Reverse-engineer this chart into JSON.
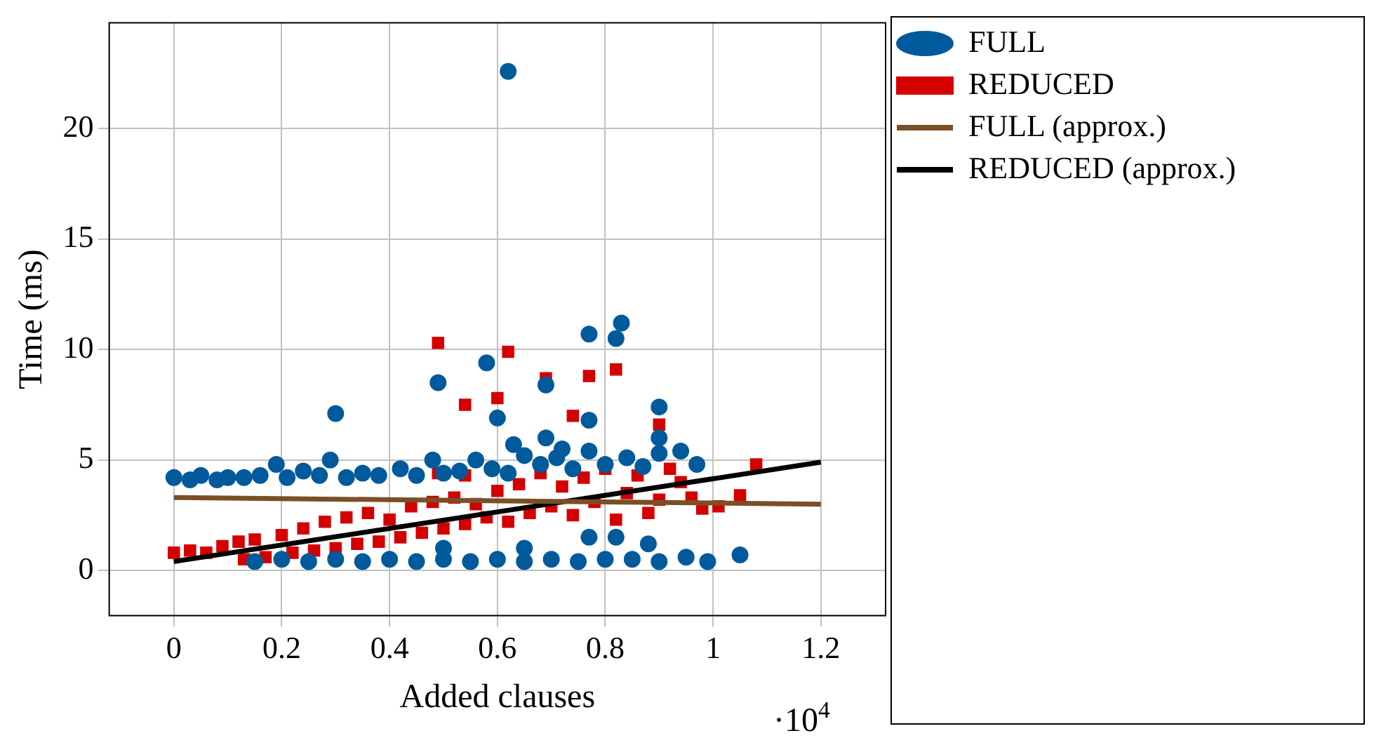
{
  "chart_data": {
    "type": "scatter",
    "xlabel": "Added clauses",
    "ylabel": "Time (ms)",
    "annotations": [
      "·10$^{4}$"
    ],
    "xlim": [
      -0.12,
      1.32
    ],
    "ylim": [
      -2.05,
      24.8
    ],
    "xticks": [
      0,
      0.2,
      0.4,
      0.6,
      0.8,
      1,
      1.2
    ],
    "yticks": [
      0,
      5,
      10,
      15,
      20
    ],
    "grid": true,
    "legend": "top right",
    "series": [
      {
        "name": "FULL",
        "type": "scatter",
        "marker": "circle",
        "color": "#005a9c",
        "x": [
          0,
          0.03,
          0.05,
          0.08,
          0.1,
          0.13,
          0.16,
          0.19,
          0.21,
          0.24,
          0.27,
          0.29,
          0.32,
          0.35,
          0.38,
          0.42,
          0.45,
          0.48,
          0.5,
          0.53,
          0.56,
          0.59,
          0.62,
          0.65,
          0.68,
          0.71,
          0.74,
          0.77,
          0.8,
          0.84,
          0.87,
          0.9,
          0.94,
          0.97,
          0.15,
          0.2,
          0.25,
          0.3,
          0.35,
          0.4,
          0.45,
          0.5,
          0.55,
          0.6,
          0.65,
          0.7,
          0.75,
          0.8,
          0.85,
          0.9,
          0.95,
          0.99,
          1.05,
          0.88,
          0.77,
          0.82,
          0.65,
          0.5,
          0.62,
          0.3,
          0.49,
          0.58,
          0.6,
          0.77,
          0.83,
          0.82,
          0.77,
          0.69,
          0.9,
          0.63,
          0.69,
          0.72,
          0.9
        ],
        "values": [
          4.2,
          4.1,
          4.3,
          4.1,
          4.2,
          4.2,
          4.3,
          4.8,
          4.2,
          4.5,
          4.3,
          5.0,
          4.2,
          4.4,
          4.3,
          4.6,
          4.3,
          5.0,
          4.4,
          4.5,
          5.0,
          4.6,
          4.4,
          5.2,
          4.8,
          5.1,
          4.6,
          5.4,
          4.8,
          5.1,
          4.7,
          5.3,
          5.4,
          4.8,
          0.4,
          0.5,
          0.4,
          0.5,
          0.4,
          0.5,
          0.4,
          0.5,
          0.4,
          0.5,
          0.4,
          0.5,
          0.4,
          0.5,
          0.5,
          0.4,
          0.6,
          0.4,
          0.7,
          1.2,
          1.5,
          1.5,
          1.0,
          1.0,
          22.6,
          7.1,
          8.5,
          9.4,
          6.9,
          10.7,
          11.2,
          10.5,
          6.8,
          8.4,
          7.4,
          5.7,
          6.0,
          5.5,
          6.0
        ]
      },
      {
        "name": "REDUCED",
        "type": "scatter",
        "marker": "square",
        "color": "#d40000",
        "x": [
          0,
          0.03,
          0.06,
          0.09,
          0.12,
          0.13,
          0.15,
          0.17,
          0.2,
          0.22,
          0.24,
          0.26,
          0.28,
          0.3,
          0.32,
          0.34,
          0.36,
          0.38,
          0.4,
          0.42,
          0.44,
          0.46,
          0.48,
          0.5,
          0.52,
          0.54,
          0.56,
          0.58,
          0.6,
          0.62,
          0.64,
          0.66,
          0.68,
          0.7,
          0.72,
          0.74,
          0.76,
          0.78,
          0.8,
          0.82,
          0.84,
          0.86,
          0.88,
          0.9,
          0.92,
          0.94,
          0.96,
          0.98,
          1.01,
          1.05,
          1.08,
          0.49,
          0.54,
          0.49,
          0.54,
          0.62,
          0.69,
          0.77,
          0.82,
          0.6,
          0.74,
          0.9
        ],
        "values": [
          0.8,
          0.9,
          0.8,
          1.1,
          1.3,
          0.5,
          1.4,
          0.6,
          1.6,
          0.8,
          1.9,
          0.9,
          2.2,
          1.0,
          2.4,
          1.2,
          2.6,
          1.3,
          2.3,
          1.5,
          2.9,
          1.7,
          3.1,
          1.9,
          3.3,
          2.1,
          3.0,
          2.4,
          3.6,
          2.2,
          3.9,
          2.6,
          4.4,
          2.9,
          3.8,
          2.5,
          4.2,
          3.1,
          4.6,
          2.3,
          3.5,
          4.3,
          2.6,
          3.2,
          4.6,
          4.0,
          3.3,
          2.8,
          2.9,
          3.4,
          4.8,
          10.3,
          7.5,
          4.4,
          4.3,
          9.9,
          8.7,
          8.8,
          9.1,
          7.8,
          7.0,
          6.6
        ]
      },
      {
        "name": "FULL (approx.)",
        "type": "line",
        "color": "#7b4f26",
        "x": [
          0,
          1.2
        ],
        "values": [
          3.3,
          3.0
        ]
      },
      {
        "name": "REDUCED (approx.)",
        "type": "line",
        "color": "#000000",
        "x": [
          0,
          1.2
        ],
        "values": [
          0.4,
          4.9
        ]
      }
    ]
  }
}
